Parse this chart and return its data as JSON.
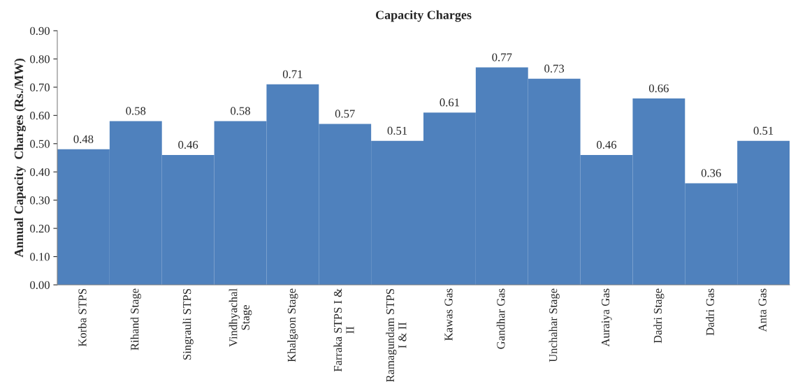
{
  "chart_data": {
    "type": "bar",
    "title": "Capacity Charges",
    "ylabel": "Annual Capacity  Charges (Rs./MW)",
    "categories": [
      "Korba STPS",
      "Rihand Stage",
      "Singrauli STPS",
      "Vindhyachal Stage",
      "Khalgaon Stage",
      "Farraka STPS I & II",
      "Ramagundam STPS I & II",
      "Kawas Gas",
      "Gandhar Gas",
      "Unchahar Stage",
      "Auraiya Gas",
      "Dadri Stage",
      "Dadri Gas",
      "Anta Gas"
    ],
    "values": [
      0.48,
      0.58,
      0.46,
      0.58,
      0.71,
      0.57,
      0.51,
      0.61,
      0.77,
      0.73,
      0.46,
      0.66,
      0.36,
      0.51
    ],
    "color": "#4f81bd",
    "data_labels": true,
    "grid": false,
    "legend": false,
    "ylim": [
      0,
      0.9
    ],
    "yticks": [
      {
        "value": 0,
        "label": "0.00"
      },
      {
        "value": 0.1,
        "label": "0.10"
      },
      {
        "value": 0.2,
        "label": "0.20"
      },
      {
        "value": 0.3,
        "label": "0.30"
      },
      {
        "value": 0.4,
        "label": "0.40"
      },
      {
        "value": 0.5,
        "label": "0.50"
      },
      {
        "value": 0.6,
        "label": "0.60"
      },
      {
        "value": 0.7,
        "label": "0.70"
      },
      {
        "value": 0.8,
        "label": "0.80"
      },
      {
        "value": 0.9,
        "label": "0.90"
      }
    ]
  }
}
